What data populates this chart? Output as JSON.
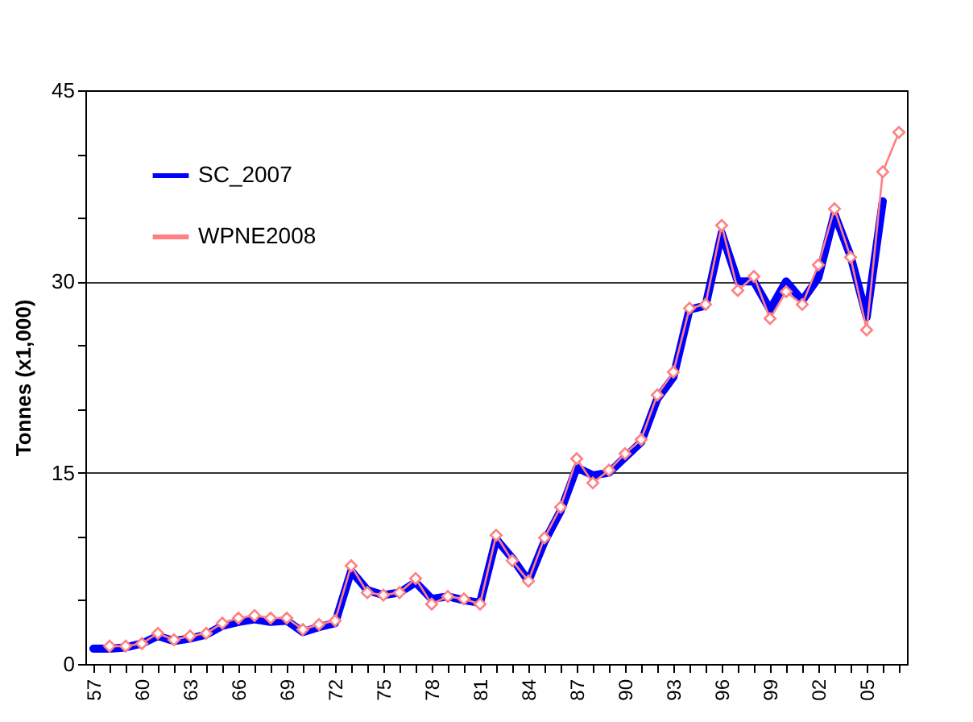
{
  "chart_data": {
    "type": "line",
    "ylabel": "Tonnes (x1,000)",
    "categories": [
      "57",
      null,
      null,
      "60",
      null,
      null,
      "63",
      null,
      null,
      "66",
      null,
      null,
      "69",
      null,
      null,
      "72",
      null,
      null,
      "75",
      null,
      null,
      "78",
      null,
      null,
      "81",
      null,
      null,
      "84",
      null,
      null,
      "87",
      null,
      null,
      "90",
      null,
      null,
      "93",
      null,
      null,
      "96",
      null,
      null,
      "99",
      null,
      null,
      "02",
      null,
      null,
      "05",
      null,
      null
    ],
    "series": [
      {
        "name": "SC_2007",
        "color": "#0000ff",
        "marker": "none",
        "values": [
          1.2,
          1.2,
          1.3,
          1.6,
          2.2,
          1.8,
          2.0,
          2.3,
          3.0,
          3.3,
          3.5,
          3.3,
          3.4,
          2.5,
          2.9,
          3.2,
          7.3,
          5.8,
          5.4,
          5.6,
          6.4,
          5.1,
          5.3,
          5.0,
          4.8,
          9.8,
          8.3,
          6.5,
          9.6,
          12.0,
          15.4,
          14.8,
          15.0,
          16.2,
          17.4,
          20.8,
          22.5,
          27.8,
          28.1,
          33.8,
          30.0,
          30.0,
          27.8,
          30.0,
          28.5,
          30.3,
          35.3,
          32.0,
          27.2,
          36.3,
          null
        ]
      },
      {
        "name": "WPNE2008",
        "color": "#ff8080",
        "marker": "diamond",
        "values": [
          null,
          1.4,
          1.4,
          1.6,
          2.4,
          1.9,
          2.2,
          2.4,
          3.2,
          3.6,
          3.8,
          3.6,
          3.6,
          2.7,
          3.1,
          3.4,
          7.7,
          5.6,
          5.4,
          5.6,
          6.7,
          4.7,
          5.3,
          5.1,
          4.7,
          10.1,
          8.1,
          6.5,
          9.9,
          12.3,
          16.1,
          14.2,
          15.2,
          16.5,
          17.6,
          21.1,
          22.9,
          27.9,
          28.2,
          34.4,
          29.3,
          30.4,
          27.1,
          29.2,
          28.2,
          31.3,
          35.7,
          31.9,
          26.2,
          38.6,
          41.7
        ]
      }
    ],
    "ylim": [
      0,
      45
    ],
    "yticks": [
      0,
      {
        "value": 5,
        "label": null
      },
      {
        "value": 10,
        "label": null
      },
      15,
      {
        "value": 20,
        "label": null
      },
      {
        "value": 25,
        "label": null
      },
      30,
      {
        "value": 35,
        "label": null
      },
      {
        "value": 40,
        "label": null
      },
      45
    ],
    "grid": "y",
    "legend": "top left"
  }
}
